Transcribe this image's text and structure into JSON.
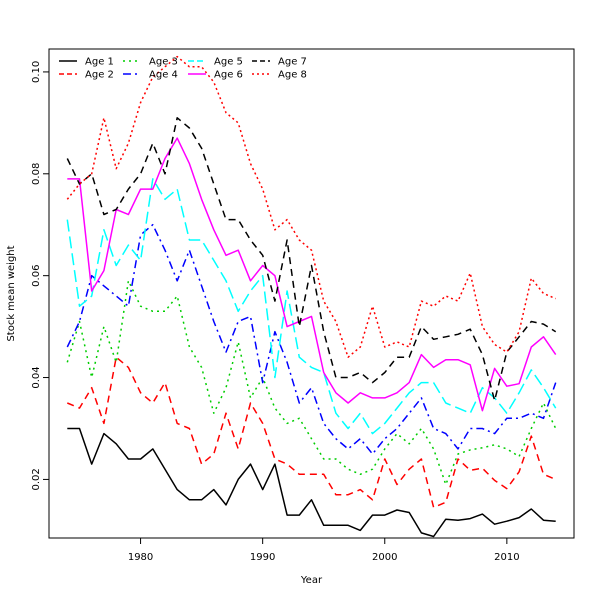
{
  "chart_data": {
    "type": "line",
    "title": "",
    "xlabel": "Year",
    "ylabel": "Stock mean weight",
    "xlim": [
      1972.5,
      2015.5
    ],
    "ylim": [
      0.0085,
      0.1045
    ],
    "x_ticks": [
      1980,
      1990,
      2000,
      2010
    ],
    "y_ticks": [
      0.02,
      0.04,
      0.06,
      0.08,
      0.1
    ],
    "y_tick_labels": [
      "0.02",
      "0.04",
      "0.06",
      "0.08",
      "0.10"
    ],
    "legend_position": "top-left",
    "grid": false,
    "x": [
      1974,
      1975,
      1976,
      1977,
      1978,
      1979,
      1980,
      1981,
      1982,
      1983,
      1984,
      1985,
      1986,
      1987,
      1988,
      1989,
      1990,
      1991,
      1992,
      1993,
      1994,
      1995,
      1996,
      1997,
      1998,
      1999,
      2000,
      2001,
      2002,
      2003,
      2004,
      2005,
      2006,
      2007,
      2008,
      2009,
      2010,
      2011,
      2012,
      2013,
      2014
    ],
    "series": [
      {
        "name": "Age 1",
        "color": "#000000",
        "dash": "solid",
        "values": [
          0.03,
          0.03,
          0.023,
          0.029,
          0.027,
          0.024,
          0.024,
          0.026,
          0.022,
          0.018,
          0.016,
          0.016,
          0.018,
          0.015,
          0.02,
          0.023,
          0.018,
          0.023,
          0.013,
          0.013,
          0.016,
          0.011,
          0.011,
          0.011,
          0.01,
          0.013,
          0.013,
          0.014,
          0.0135,
          0.0095,
          0.0088,
          0.0122,
          0.012,
          0.0123,
          0.0132,
          0.0112,
          0.0118,
          0.0125,
          0.0142,
          0.012,
          0.0118
        ]
      },
      {
        "name": "Age 2",
        "color": "#ff0000",
        "dash": "dashed",
        "values": [
          0.035,
          0.034,
          0.038,
          0.031,
          0.044,
          0.042,
          0.037,
          0.035,
          0.039,
          0.031,
          0.03,
          0.023,
          0.025,
          0.033,
          0.026,
          0.035,
          0.031,
          0.024,
          0.023,
          0.021,
          0.021,
          0.021,
          0.017,
          0.017,
          0.018,
          0.016,
          0.024,
          0.019,
          0.022,
          0.024,
          0.0145,
          0.0155,
          0.024,
          0.0218,
          0.0222,
          0.0198,
          0.0182,
          0.0215,
          0.0285,
          0.021,
          0.02
        ]
      },
      {
        "name": "Age 3",
        "color": "#00cd00",
        "dash": "dotted",
        "values": [
          0.043,
          0.051,
          0.04,
          0.05,
          0.043,
          0.059,
          0.054,
          0.053,
          0.053,
          0.056,
          0.046,
          0.042,
          0.033,
          0.038,
          0.047,
          0.036,
          0.04,
          0.034,
          0.031,
          0.032,
          0.028,
          0.024,
          0.024,
          0.022,
          0.021,
          0.022,
          0.026,
          0.029,
          0.027,
          0.03,
          0.026,
          0.019,
          0.025,
          0.0258,
          0.0262,
          0.0268,
          0.026,
          0.0245,
          0.03,
          0.035,
          0.03
        ]
      },
      {
        "name": "Age 4",
        "color": "#0000ff",
        "dash": "dashdot",
        "values": [
          0.046,
          0.051,
          0.06,
          0.058,
          0.056,
          0.054,
          0.068,
          0.07,
          0.065,
          0.059,
          0.065,
          0.058,
          0.051,
          0.045,
          0.051,
          0.052,
          0.039,
          0.049,
          0.043,
          0.035,
          0.038,
          0.031,
          0.028,
          0.026,
          0.028,
          0.025,
          0.028,
          0.03,
          0.033,
          0.036,
          0.03,
          0.029,
          0.026,
          0.03,
          0.03,
          0.029,
          0.032,
          0.032,
          0.033,
          0.032,
          0.039
        ]
      },
      {
        "name": "Age 5",
        "color": "#00ffff",
        "dash": "longdash",
        "values": [
          0.071,
          0.054,
          0.056,
          0.069,
          0.062,
          0.066,
          0.063,
          0.079,
          0.075,
          0.077,
          0.067,
          0.067,
          0.063,
          0.059,
          0.053,
          0.057,
          0.06,
          0.04,
          0.057,
          0.044,
          0.042,
          0.041,
          0.033,
          0.03,
          0.033,
          0.029,
          0.031,
          0.034,
          0.037,
          0.039,
          0.039,
          0.035,
          0.034,
          0.033,
          0.038,
          0.036,
          0.033,
          0.037,
          0.0415,
          0.038,
          0.034
        ]
      },
      {
        "name": "Age 6",
        "color": "#ff00ff",
        "dash": "solid",
        "values": [
          0.079,
          0.079,
          0.057,
          0.061,
          0.073,
          0.072,
          0.077,
          0.077,
          0.083,
          0.087,
          0.082,
          0.075,
          0.069,
          0.064,
          0.065,
          0.059,
          0.062,
          0.06,
          0.05,
          0.051,
          0.052,
          0.041,
          0.037,
          0.035,
          0.037,
          0.036,
          0.036,
          0.037,
          0.039,
          0.0445,
          0.042,
          0.0435,
          0.0435,
          0.0425,
          0.0335,
          0.0418,
          0.0383,
          0.0388,
          0.046,
          0.048,
          0.0445
        ]
      },
      {
        "name": "Age 7",
        "color": "#000000",
        "dash": "dashed",
        "values": [
          0.083,
          0.078,
          0.08,
          0.072,
          0.073,
          0.077,
          0.08,
          0.086,
          0.08,
          0.091,
          0.089,
          0.085,
          0.078,
          0.071,
          0.071,
          0.067,
          0.064,
          0.055,
          0.067,
          0.05,
          0.062,
          0.049,
          0.04,
          0.04,
          0.041,
          0.039,
          0.041,
          0.044,
          0.044,
          0.05,
          0.0475,
          0.048,
          0.0485,
          0.0495,
          0.0445,
          0.0355,
          0.045,
          0.048,
          0.051,
          0.0505,
          0.049
        ]
      },
      {
        "name": "Age 8",
        "color": "#ff0000",
        "dash": "densedot",
        "values": [
          0.075,
          0.078,
          0.08,
          0.091,
          0.081,
          0.086,
          0.094,
          0.099,
          0.101,
          0.103,
          0.101,
          0.101,
          0.098,
          0.092,
          0.09,
          0.082,
          0.077,
          0.069,
          0.071,
          0.067,
          0.065,
          0.055,
          0.051,
          0.044,
          0.046,
          0.054,
          0.046,
          0.047,
          0.046,
          0.055,
          0.054,
          0.056,
          0.055,
          0.0605,
          0.05,
          0.0465,
          0.045,
          0.049,
          0.0595,
          0.0565,
          0.0555
        ]
      }
    ]
  }
}
